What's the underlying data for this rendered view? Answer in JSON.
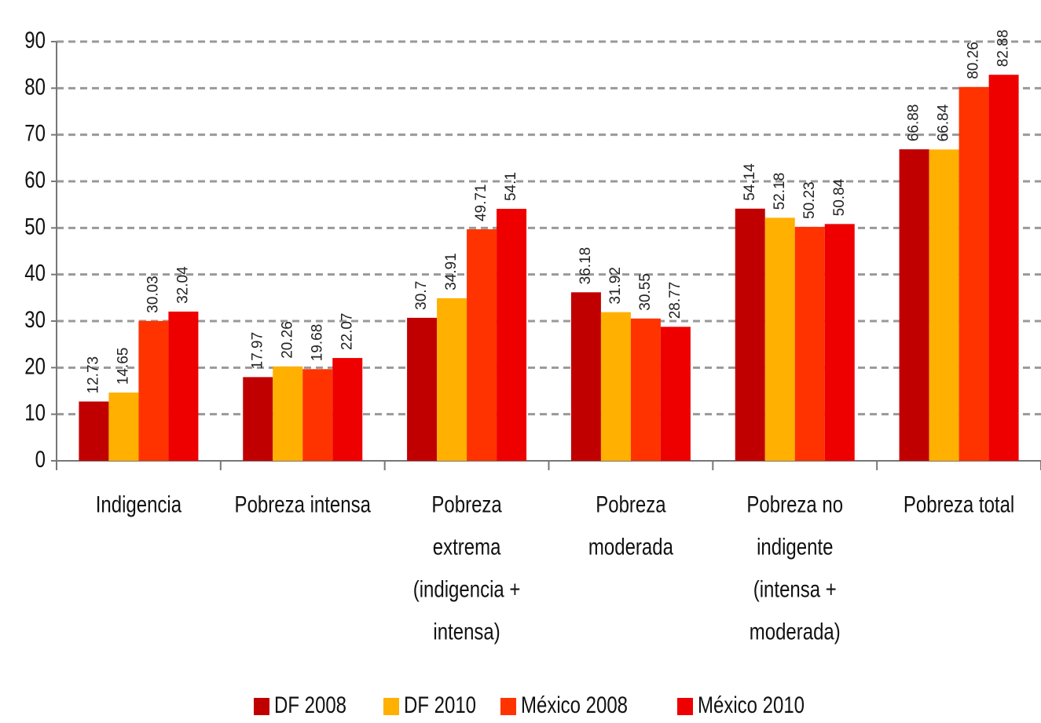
{
  "chart_data": {
    "type": "bar",
    "categories": [
      "Indigencia",
      "Pobreza intensa",
      "Pobreza\nextrema\n(indigencia +\nintensa)",
      "Pobreza\nmoderada",
      "Pobreza no\nindigente\n(intensa +\nmoderada)",
      "Pobreza total"
    ],
    "series": [
      {
        "name": "DF 2008",
        "color": "#c00000",
        "values": [
          12.73,
          17.97,
          30.7,
          36.18,
          54.14,
          66.88
        ]
      },
      {
        "name": "DF 2010",
        "color": "#ffb000",
        "values": [
          14.65,
          20.26,
          34.91,
          31.92,
          52.18,
          66.84
        ]
      },
      {
        "name": "México 2008",
        "color": "#ff3300",
        "values": [
          30.03,
          19.68,
          49.71,
          30.55,
          50.23,
          80.26
        ]
      },
      {
        "name": "México 2010",
        "color": "#ee0000",
        "values": [
          32.04,
          22.07,
          54.1,
          28.77,
          50.84,
          82.88
        ]
      }
    ],
    "ylim": [
      0,
      90
    ],
    "yticks": [
      0,
      10,
      20,
      30,
      40,
      50,
      60,
      70,
      80,
      90
    ],
    "grid": true,
    "legend": "bottom"
  }
}
